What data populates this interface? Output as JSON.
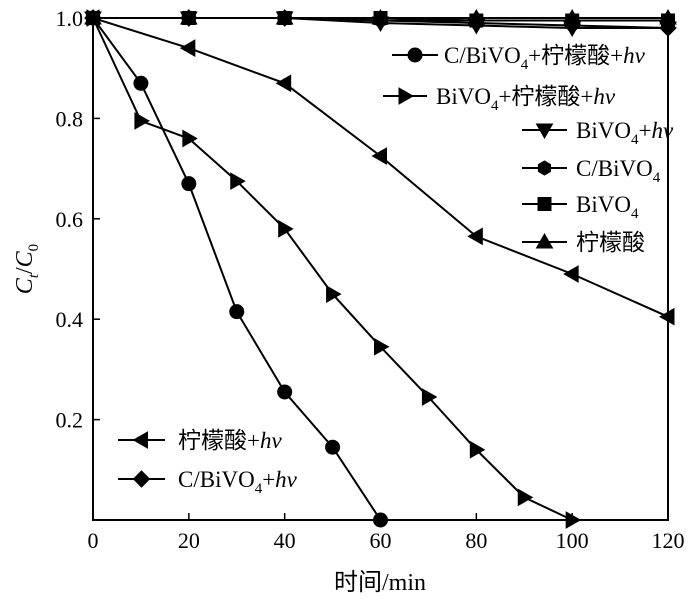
{
  "chart_data": {
    "type": "line",
    "xlabel": "时间/min",
    "ylabel": {
      "c": "C",
      "t": "t",
      "slash": "/",
      "c0": "C",
      "zero": "0"
    },
    "xlim": [
      0,
      120
    ],
    "ylim": [
      0,
      1.0
    ],
    "x_ticks": [
      "0",
      "20",
      "40",
      "60",
      "80",
      "100",
      "120"
    ],
    "x_tick_values": [
      0,
      20,
      40,
      60,
      80,
      100,
      120
    ],
    "y_ticks": [
      "0.2",
      "0.4",
      "0.6",
      "0.8",
      "1.0"
    ],
    "y_tick_values": [
      0.2,
      0.4,
      0.6,
      0.8,
      1.0
    ],
    "grid": false,
    "series": [
      {
        "name": "C/BiVO4+柠檬酸+hv",
        "marker": "circle",
        "legend": {
          "p1": "C/BiVO",
          "sub": "4",
          "p2": "+柠檬酸+",
          "it": "hv"
        },
        "x": [
          0,
          10,
          20,
          30,
          40,
          50,
          60
        ],
        "y": [
          1.0,
          0.87,
          0.67,
          0.415,
          0.255,
          0.145,
          0.0
        ]
      },
      {
        "name": "BiVO4+柠檬酸+hv",
        "marker": "triangle-right",
        "legend": {
          "p1": "BiVO",
          "sub": "4",
          "p2": "+柠檬酸+",
          "it": "hv"
        },
        "x": [
          0,
          10,
          20,
          30,
          40,
          50,
          60,
          70,
          80,
          90,
          100
        ],
        "y": [
          1.0,
          0.795,
          0.76,
          0.675,
          0.58,
          0.45,
          0.345,
          0.245,
          0.14,
          0.045,
          0.0
        ]
      },
      {
        "name": "BiVO4+hv",
        "marker": "triangle-down",
        "legend": {
          "p1": "BiVO",
          "sub": "4",
          "p2": "+",
          "it": "hv"
        },
        "x": [
          0,
          20,
          40,
          60,
          80,
          100,
          120
        ],
        "y": [
          1.0,
          1.0,
          1.0,
          0.99,
          0.985,
          0.98,
          0.98
        ]
      },
      {
        "name": "C/BiVO4",
        "marker": "hexagon",
        "legend": {
          "p1": "C/BiVO",
          "sub": "4",
          "p2": "",
          "it": ""
        },
        "x": [
          0,
          20,
          40,
          60,
          80,
          100,
          120
        ],
        "y": [
          1.0,
          1.0,
          1.0,
          0.995,
          0.995,
          0.995,
          0.995
        ]
      },
      {
        "name": "BiVO4",
        "marker": "square",
        "legend": {
          "p1": "BiVO",
          "sub": "4",
          "p2": "",
          "it": ""
        },
        "x": [
          0,
          20,
          40,
          60,
          80,
          100,
          120
        ],
        "y": [
          1.0,
          1.0,
          1.0,
          1.0,
          0.995,
          0.995,
          0.995
        ]
      },
      {
        "name": "柠檬酸",
        "marker": "triangle-up",
        "legend": {
          "p1": "柠檬酸",
          "sub": "",
          "p2": "",
          "it": ""
        },
        "x": [
          0,
          20,
          40,
          60,
          80,
          100,
          120
        ],
        "y": [
          1.0,
          1.0,
          1.0,
          1.0,
          1.0,
          1.0,
          1.0
        ]
      },
      {
        "name": "柠檬酸+hv",
        "marker": "triangle-left",
        "legend": {
          "p1": "柠檬酸+",
          "sub": "",
          "p2": "",
          "it": "hv"
        },
        "x": [
          0,
          20,
          40,
          60,
          80,
          100,
          120
        ],
        "y": [
          1.0,
          0.94,
          0.87,
          0.725,
          0.565,
          0.49,
          0.405
        ]
      },
      {
        "name": "C/BiVO4+hv",
        "marker": "diamond",
        "legend": {
          "p1": "C/BiVO",
          "sub": "4",
          "p2": "+",
          "it": "hv"
        },
        "x": [
          0,
          20,
          40,
          60,
          80,
          100,
          120
        ],
        "y": [
          1.0,
          1.0,
          1.0,
          0.995,
          0.99,
          0.985,
          0.98
        ]
      }
    ]
  }
}
